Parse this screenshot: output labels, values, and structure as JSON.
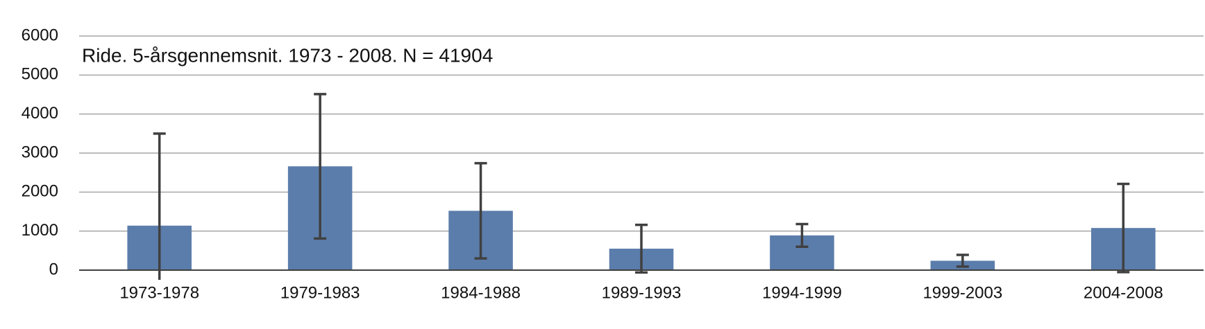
{
  "chart_data": {
    "type": "bar",
    "title": "Ride. 5-årsgennemsnit. 1973 - 2008. N = 41904",
    "categories": [
      "1973-1978",
      "1979-1983",
      "1984-1988",
      "1989-1993",
      "1994-1999",
      "1999-2003",
      "2004-2008"
    ],
    "values": [
      1140,
      2660,
      1520,
      550,
      890,
      240,
      1080
    ],
    "errors": [
      2360,
      1850,
      1220,
      610,
      290,
      150,
      1130
    ],
    "color": "#5b7dab",
    "error_color": "#404040",
    "ylim": [
      0,
      6000
    ],
    "yticks": [
      0,
      1000,
      2000,
      3000,
      4000,
      5000,
      6000
    ],
    "grid": true
  }
}
